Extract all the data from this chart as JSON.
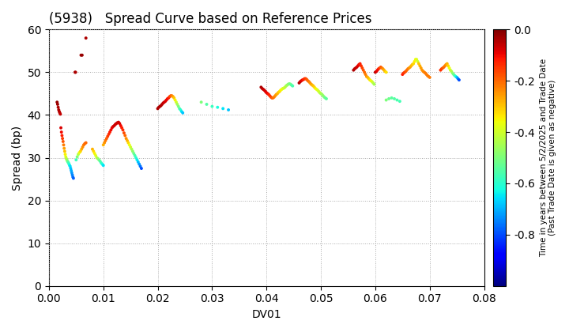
{
  "title": "(5938)   Spread Curve based on Reference Prices",
  "xlabel": "DV01",
  "ylabel": "Spread (bp)",
  "xlim": [
    0.0,
    0.08
  ],
  "ylim": [
    0,
    60
  ],
  "xticks": [
    0.0,
    0.01,
    0.02,
    0.03,
    0.04,
    0.05,
    0.06,
    0.07,
    0.08
  ],
  "yticks": [
    0,
    10,
    20,
    30,
    40,
    50,
    60
  ],
  "colorbar_label": "Time in years between 5/2/2025 and Trade Date\n(Past Trade Date is given as negative)",
  "cmap": "jet",
  "vmin": -1.0,
  "vmax": 0.0,
  "colorbar_ticks": [
    0.0,
    -0.2,
    -0.4,
    -0.6,
    -0.8
  ],
  "marker_size": 8,
  "background_color": "#ffffff",
  "grid_color": "#aaaaaa",
  "points": [
    [
      0.0015,
      43.0,
      -0.02
    ],
    [
      0.0016,
      42.5,
      -0.03
    ],
    [
      0.0017,
      41.8,
      -0.04
    ],
    [
      0.0018,
      41.2,
      -0.04
    ],
    [
      0.0019,
      40.8,
      -0.05
    ],
    [
      0.002,
      40.5,
      -0.05
    ],
    [
      0.0021,
      40.2,
      -0.06
    ],
    [
      0.0022,
      37.0,
      -0.08
    ],
    [
      0.0023,
      36.0,
      -0.1
    ],
    [
      0.0024,
      35.2,
      -0.12
    ],
    [
      0.0025,
      34.5,
      -0.15
    ],
    [
      0.0026,
      33.8,
      -0.18
    ],
    [
      0.0027,
      33.0,
      -0.22
    ],
    [
      0.0028,
      32.2,
      -0.26
    ],
    [
      0.0029,
      31.5,
      -0.3
    ],
    [
      0.003,
      30.8,
      -0.35
    ],
    [
      0.0031,
      30.2,
      -0.38
    ],
    [
      0.0032,
      29.8,
      -0.42
    ],
    [
      0.0033,
      29.5,
      -0.46
    ],
    [
      0.0034,
      29.2,
      -0.5
    ],
    [
      0.0035,
      29.0,
      -0.53
    ],
    [
      0.0036,
      28.8,
      -0.57
    ],
    [
      0.0037,
      28.5,
      -0.6
    ],
    [
      0.0038,
      28.2,
      -0.63
    ],
    [
      0.0039,
      28.0,
      -0.66
    ],
    [
      0.004,
      27.5,
      -0.68
    ],
    [
      0.0041,
      27.0,
      -0.7
    ],
    [
      0.0042,
      26.5,
      -0.72
    ],
    [
      0.0043,
      26.0,
      -0.74
    ],
    [
      0.0044,
      25.5,
      -0.76
    ],
    [
      0.0045,
      25.2,
      -0.78
    ],
    [
      0.005,
      29.5,
      -0.58
    ],
    [
      0.0052,
      30.2,
      -0.5
    ],
    [
      0.0054,
      30.8,
      -0.43
    ],
    [
      0.0056,
      31.2,
      -0.37
    ],
    [
      0.0058,
      31.5,
      -0.32
    ],
    [
      0.006,
      32.0,
      -0.27
    ],
    [
      0.0062,
      32.5,
      -0.24
    ],
    [
      0.0064,
      33.0,
      -0.22
    ],
    [
      0.0066,
      33.3,
      -0.2
    ],
    [
      0.0068,
      33.5,
      -0.2
    ],
    [
      0.008,
      32.0,
      -0.28
    ],
    [
      0.0082,
      31.5,
      -0.32
    ],
    [
      0.0084,
      31.0,
      -0.35
    ],
    [
      0.0086,
      30.5,
      -0.38
    ],
    [
      0.0088,
      30.0,
      -0.42
    ],
    [
      0.009,
      29.8,
      -0.46
    ],
    [
      0.0092,
      29.5,
      -0.5
    ],
    [
      0.0094,
      29.2,
      -0.55
    ],
    [
      0.0096,
      28.8,
      -0.58
    ],
    [
      0.0098,
      28.5,
      -0.62
    ],
    [
      0.01,
      28.2,
      -0.65
    ],
    [
      0.01,
      33.0,
      -0.28
    ],
    [
      0.0102,
      33.5,
      -0.25
    ],
    [
      0.0104,
      34.0,
      -0.22
    ],
    [
      0.0106,
      34.5,
      -0.19
    ],
    [
      0.0108,
      35.0,
      -0.16
    ],
    [
      0.011,
      35.5,
      -0.14
    ],
    [
      0.0112,
      36.0,
      -0.12
    ],
    [
      0.0114,
      36.5,
      -0.1
    ],
    [
      0.0116,
      37.0,
      -0.09
    ],
    [
      0.0118,
      37.3,
      -0.08
    ],
    [
      0.012,
      37.5,
      -0.07
    ],
    [
      0.0122,
      37.8,
      -0.07
    ],
    [
      0.0124,
      38.0,
      -0.07
    ],
    [
      0.0126,
      38.2,
      -0.07
    ],
    [
      0.0128,
      38.3,
      -0.07
    ],
    [
      0.013,
      38.0,
      -0.08
    ],
    [
      0.0132,
      37.5,
      -0.1
    ],
    [
      0.0134,
      37.0,
      -0.12
    ],
    [
      0.0136,
      36.5,
      -0.14
    ],
    [
      0.0138,
      35.8,
      -0.17
    ],
    [
      0.014,
      35.2,
      -0.2
    ],
    [
      0.0142,
      34.5,
      -0.24
    ],
    [
      0.0144,
      34.0,
      -0.28
    ],
    [
      0.0146,
      33.5,
      -0.32
    ],
    [
      0.0148,
      33.0,
      -0.36
    ],
    [
      0.015,
      32.5,
      -0.4
    ],
    [
      0.0152,
      32.0,
      -0.44
    ],
    [
      0.0154,
      31.5,
      -0.48
    ],
    [
      0.0156,
      31.0,
      -0.52
    ],
    [
      0.0158,
      30.5,
      -0.56
    ],
    [
      0.016,
      30.0,
      -0.6
    ],
    [
      0.0162,
      29.5,
      -0.64
    ],
    [
      0.0164,
      29.0,
      -0.68
    ],
    [
      0.0166,
      28.5,
      -0.72
    ],
    [
      0.0168,
      28.0,
      -0.76
    ],
    [
      0.017,
      27.5,
      -0.8
    ],
    [
      0.02,
      41.5,
      -0.04
    ],
    [
      0.0202,
      41.8,
      -0.04
    ],
    [
      0.0204,
      42.0,
      -0.04
    ],
    [
      0.0206,
      42.2,
      -0.04
    ],
    [
      0.0208,
      42.5,
      -0.05
    ],
    [
      0.021,
      42.8,
      -0.06
    ],
    [
      0.0212,
      43.0,
      -0.07
    ],
    [
      0.0214,
      43.2,
      -0.08
    ],
    [
      0.0216,
      43.5,
      -0.09
    ],
    [
      0.0218,
      43.8,
      -0.1
    ],
    [
      0.022,
      44.0,
      -0.12
    ],
    [
      0.0222,
      44.3,
      -0.15
    ],
    [
      0.0224,
      44.5,
      -0.18
    ],
    [
      0.0226,
      44.5,
      -0.22
    ],
    [
      0.0228,
      44.3,
      -0.26
    ],
    [
      0.023,
      44.0,
      -0.3
    ],
    [
      0.0232,
      43.5,
      -0.35
    ],
    [
      0.0234,
      43.0,
      -0.4
    ],
    [
      0.0236,
      42.5,
      -0.45
    ],
    [
      0.0238,
      42.0,
      -0.5
    ],
    [
      0.024,
      41.5,
      -0.55
    ],
    [
      0.0242,
      41.2,
      -0.6
    ],
    [
      0.0244,
      40.8,
      -0.65
    ],
    [
      0.0246,
      40.5,
      -0.68
    ],
    [
      0.028,
      43.0,
      -0.5
    ],
    [
      0.029,
      42.5,
      -0.55
    ],
    [
      0.03,
      42.0,
      -0.58
    ],
    [
      0.031,
      41.8,
      -0.62
    ],
    [
      0.032,
      41.5,
      -0.65
    ],
    [
      0.033,
      41.2,
      -0.68
    ],
    [
      0.039,
      46.5,
      -0.04
    ],
    [
      0.0392,
      46.2,
      -0.05
    ],
    [
      0.0394,
      46.0,
      -0.06
    ],
    [
      0.0396,
      45.8,
      -0.07
    ],
    [
      0.0398,
      45.5,
      -0.08
    ],
    [
      0.04,
      45.2,
      -0.09
    ],
    [
      0.0402,
      45.0,
      -0.1
    ],
    [
      0.0404,
      44.8,
      -0.12
    ],
    [
      0.0406,
      44.5,
      -0.14
    ],
    [
      0.0408,
      44.2,
      -0.16
    ],
    [
      0.041,
      44.0,
      -0.18
    ],
    [
      0.0412,
      44.0,
      -0.2
    ],
    [
      0.0414,
      44.2,
      -0.22
    ],
    [
      0.0416,
      44.5,
      -0.24
    ],
    [
      0.0418,
      44.8,
      -0.26
    ],
    [
      0.042,
      45.0,
      -0.28
    ],
    [
      0.0422,
      45.3,
      -0.3
    ],
    [
      0.0424,
      45.5,
      -0.32
    ],
    [
      0.0426,
      45.8,
      -0.34
    ],
    [
      0.0428,
      46.0,
      -0.36
    ],
    [
      0.043,
      46.2,
      -0.38
    ],
    [
      0.0432,
      46.3,
      -0.4
    ],
    [
      0.0434,
      46.5,
      -0.42
    ],
    [
      0.0436,
      46.8,
      -0.44
    ],
    [
      0.0438,
      47.0,
      -0.46
    ],
    [
      0.044,
      47.2,
      -0.48
    ],
    [
      0.0442,
      47.3,
      -0.5
    ],
    [
      0.0444,
      47.2,
      -0.52
    ],
    [
      0.0446,
      47.0,
      -0.54
    ],
    [
      0.0448,
      46.8,
      -0.56
    ],
    [
      0.046,
      47.5,
      -0.04
    ],
    [
      0.0462,
      47.8,
      -0.06
    ],
    [
      0.0464,
      48.0,
      -0.08
    ],
    [
      0.0466,
      48.2,
      -0.1
    ],
    [
      0.0468,
      48.3,
      -0.12
    ],
    [
      0.047,
      48.5,
      -0.14
    ],
    [
      0.0472,
      48.5,
      -0.16
    ],
    [
      0.0474,
      48.3,
      -0.18
    ],
    [
      0.0476,
      48.0,
      -0.2
    ],
    [
      0.0478,
      47.8,
      -0.22
    ],
    [
      0.048,
      47.5,
      -0.24
    ],
    [
      0.0482,
      47.2,
      -0.26
    ],
    [
      0.0484,
      47.0,
      -0.28
    ],
    [
      0.0486,
      46.8,
      -0.3
    ],
    [
      0.0488,
      46.5,
      -0.32
    ],
    [
      0.049,
      46.2,
      -0.34
    ],
    [
      0.0492,
      46.0,
      -0.36
    ],
    [
      0.0494,
      45.8,
      -0.38
    ],
    [
      0.0496,
      45.5,
      -0.4
    ],
    [
      0.0498,
      45.2,
      -0.42
    ],
    [
      0.05,
      45.0,
      -0.44
    ],
    [
      0.0502,
      44.8,
      -0.46
    ],
    [
      0.0504,
      44.5,
      -0.48
    ],
    [
      0.0506,
      44.2,
      -0.5
    ],
    [
      0.0508,
      44.0,
      -0.52
    ],
    [
      0.051,
      43.8,
      -0.54
    ],
    [
      0.056,
      50.5,
      -0.04
    ],
    [
      0.0562,
      50.8,
      -0.05
    ],
    [
      0.0564,
      51.0,
      -0.06
    ],
    [
      0.0566,
      51.2,
      -0.07
    ],
    [
      0.0568,
      51.5,
      -0.08
    ],
    [
      0.057,
      51.8,
      -0.1
    ],
    [
      0.0572,
      52.0,
      -0.12
    ],
    [
      0.0574,
      51.5,
      -0.14
    ],
    [
      0.0576,
      51.0,
      -0.16
    ],
    [
      0.0578,
      50.5,
      -0.18
    ],
    [
      0.058,
      50.0,
      -0.2
    ],
    [
      0.0582,
      49.5,
      -0.22
    ],
    [
      0.0584,
      49.0,
      -0.25
    ],
    [
      0.0586,
      48.8,
      -0.28
    ],
    [
      0.0588,
      48.5,
      -0.3
    ],
    [
      0.059,
      48.2,
      -0.33
    ],
    [
      0.0592,
      48.0,
      -0.36
    ],
    [
      0.0594,
      47.8,
      -0.39
    ],
    [
      0.0596,
      47.5,
      -0.42
    ],
    [
      0.0598,
      47.2,
      -0.45
    ],
    [
      0.06,
      50.0,
      -0.06
    ],
    [
      0.0602,
      50.2,
      -0.08
    ],
    [
      0.0604,
      50.5,
      -0.1
    ],
    [
      0.0606,
      50.8,
      -0.12
    ],
    [
      0.0608,
      51.0,
      -0.15
    ],
    [
      0.061,
      51.2,
      -0.18
    ],
    [
      0.0612,
      51.0,
      -0.21
    ],
    [
      0.0614,
      50.8,
      -0.24
    ],
    [
      0.0616,
      50.5,
      -0.27
    ],
    [
      0.0618,
      50.2,
      -0.3
    ],
    [
      0.062,
      50.0,
      -0.33
    ],
    [
      0.065,
      49.5,
      -0.12
    ],
    [
      0.0652,
      49.8,
      -0.14
    ],
    [
      0.0654,
      50.0,
      -0.16
    ],
    [
      0.0656,
      50.2,
      -0.18
    ],
    [
      0.0658,
      50.5,
      -0.2
    ],
    [
      0.066,
      50.8,
      -0.22
    ],
    [
      0.0662,
      51.0,
      -0.24
    ],
    [
      0.0664,
      51.2,
      -0.26
    ],
    [
      0.0666,
      51.5,
      -0.28
    ],
    [
      0.0668,
      51.8,
      -0.3
    ],
    [
      0.067,
      52.0,
      -0.32
    ],
    [
      0.0672,
      52.5,
      -0.34
    ],
    [
      0.0674,
      53.0,
      -0.36
    ],
    [
      0.0676,
      53.0,
      -0.38
    ],
    [
      0.0678,
      52.5,
      -0.4
    ],
    [
      0.068,
      52.0,
      -0.3
    ],
    [
      0.0682,
      51.5,
      -0.28
    ],
    [
      0.0684,
      51.0,
      -0.26
    ],
    [
      0.0686,
      50.5,
      -0.25
    ],
    [
      0.0688,
      50.2,
      -0.24
    ],
    [
      0.069,
      50.0,
      -0.23
    ],
    [
      0.0692,
      49.8,
      -0.22
    ],
    [
      0.0694,
      49.5,
      -0.22
    ],
    [
      0.0696,
      49.2,
      -0.22
    ],
    [
      0.0698,
      49.0,
      -0.22
    ],
    [
      0.07,
      48.8,
      -0.22
    ],
    [
      0.072,
      50.5,
      -0.14
    ],
    [
      0.0722,
      50.8,
      -0.16
    ],
    [
      0.0724,
      51.0,
      -0.18
    ],
    [
      0.0726,
      51.2,
      -0.2
    ],
    [
      0.0728,
      51.5,
      -0.22
    ],
    [
      0.073,
      51.8,
      -0.25
    ],
    [
      0.0732,
      52.0,
      -0.28
    ],
    [
      0.0734,
      51.5,
      -0.32
    ],
    [
      0.0736,
      51.0,
      -0.36
    ],
    [
      0.0738,
      50.5,
      -0.4
    ],
    [
      0.074,
      50.2,
      -0.44
    ],
    [
      0.0742,
      49.8,
      -0.48
    ],
    [
      0.0744,
      49.5,
      -0.52
    ],
    [
      0.0746,
      49.2,
      -0.56
    ],
    [
      0.0748,
      49.0,
      -0.62
    ],
    [
      0.075,
      48.8,
      -0.68
    ],
    [
      0.0752,
      48.5,
      -0.74
    ],
    [
      0.0754,
      48.2,
      -0.8
    ],
    [
      0.062,
      43.5,
      -0.5
    ],
    [
      0.0625,
      43.8,
      -0.52
    ],
    [
      0.063,
      44.0,
      -0.54
    ],
    [
      0.0635,
      43.8,
      -0.55
    ],
    [
      0.064,
      43.5,
      -0.56
    ],
    [
      0.0645,
      43.2,
      -0.57
    ],
    [
      0.0068,
      58.0,
      -0.04
    ],
    [
      0.0059,
      54.0,
      -0.03
    ],
    [
      0.0061,
      54.0,
      -0.02
    ],
    [
      0.0048,
      50.0,
      -0.03
    ],
    [
      0.0049,
      50.0,
      -0.04
    ]
  ]
}
